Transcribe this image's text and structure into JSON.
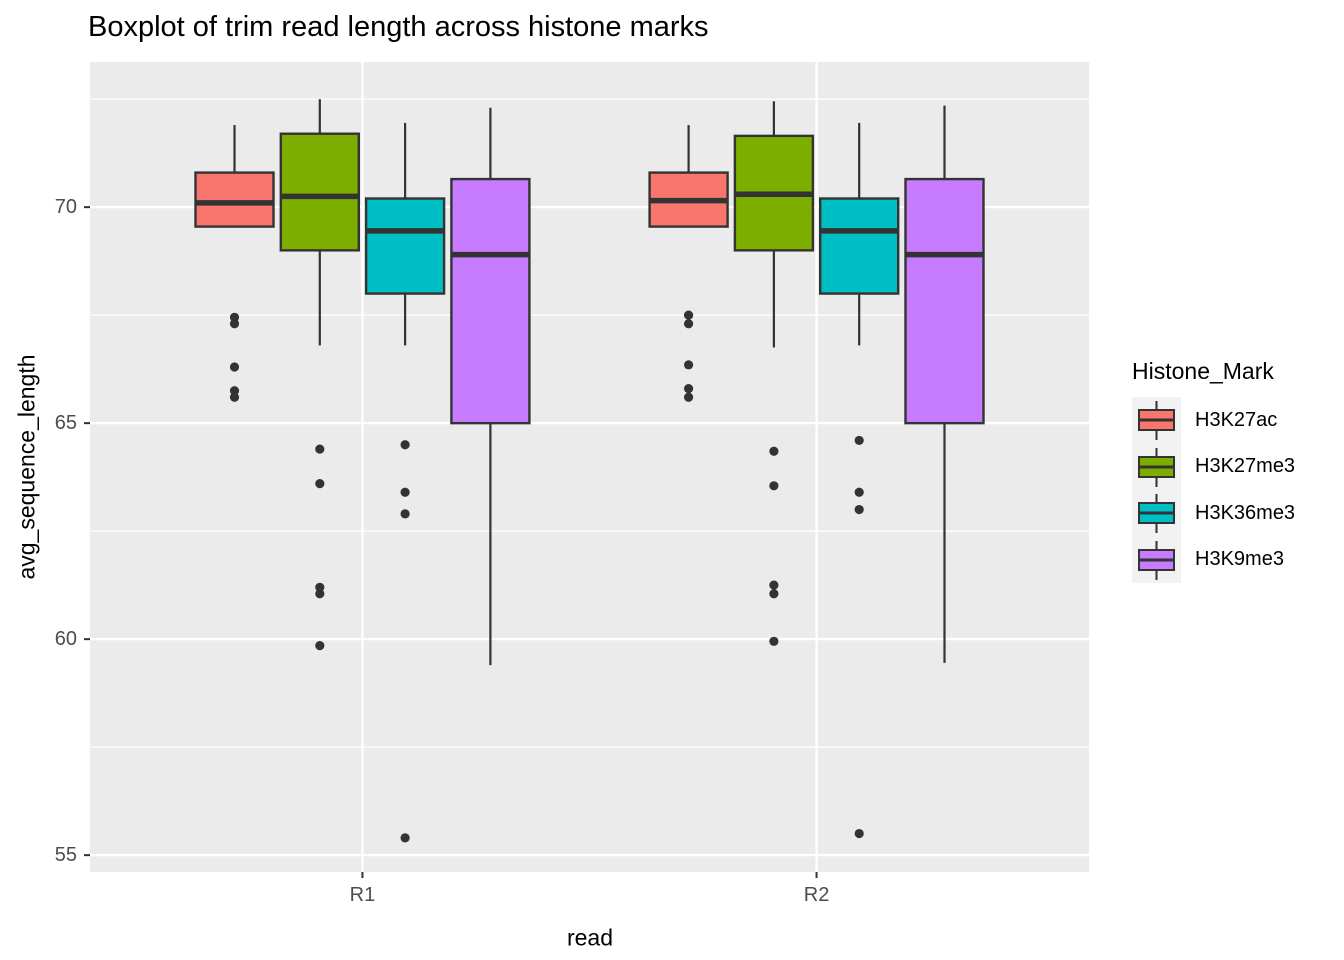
{
  "title": "Boxplot of trim read length across histone marks",
  "axes": {
    "x": {
      "label": "read"
    },
    "y": {
      "label": "avg_sequence_length"
    }
  },
  "legend": {
    "title": "Histone_Mark"
  },
  "theme": {
    "page_bg": "#FFFFFF",
    "panel_bg": "#EBEBEB",
    "grid_color": "#FFFFFF",
    "box_stroke": "#333333",
    "outlier_color": "#333333",
    "tick_label_color": "#4D4D4D",
    "text_color": "#000000",
    "legend_key_bg": "#F2F2F2"
  },
  "chart_data": {
    "type": "boxplot",
    "title": "Boxplot of trim read length across histone marks",
    "xlabel": "read",
    "ylabel": "avg_sequence_length",
    "categories": [
      "R1",
      "R2"
    ],
    "ylim": [
      54.61,
      73.36
    ],
    "yticks_major": [
      70,
      65,
      60,
      55
    ],
    "yticks_minor": [
      72.5,
      67.5,
      62.5,
      57.5
    ],
    "grid": true,
    "legend_position": "right",
    "legend_title": "Histone_Mark",
    "series": [
      {
        "name": "H3K27ac",
        "color": "#F8766D",
        "boxes": [
          {
            "category": "R1",
            "whisker_low": 69.55,
            "q1": 69.55,
            "median": 70.1,
            "q3": 70.8,
            "whisker_high": 71.9,
            "outliers": [
              67.45,
              67.3,
              66.3,
              65.75,
              65.6
            ]
          },
          {
            "category": "R2",
            "whisker_low": 69.55,
            "q1": 69.55,
            "median": 70.15,
            "q3": 70.8,
            "whisker_high": 71.9,
            "outliers": [
              67.5,
              67.3,
              66.35,
              65.8,
              65.6
            ]
          }
        ]
      },
      {
        "name": "H3K27me3",
        "color": "#7CAE00",
        "boxes": [
          {
            "category": "R1",
            "whisker_low": 66.8,
            "q1": 69.0,
            "median": 70.25,
            "q3": 71.7,
            "whisker_high": 72.5,
            "outliers": [
              64.4,
              63.6,
              61.2,
              61.05,
              59.85
            ]
          },
          {
            "category": "R2",
            "whisker_low": 66.75,
            "q1": 69.0,
            "median": 70.3,
            "q3": 71.65,
            "whisker_high": 72.45,
            "outliers": [
              64.35,
              63.55,
              61.25,
              61.05,
              59.95
            ]
          }
        ]
      },
      {
        "name": "H3K36me3",
        "color": "#00BFC4",
        "boxes": [
          {
            "category": "R1",
            "whisker_low": 66.8,
            "q1": 68.0,
            "median": 69.45,
            "q3": 70.2,
            "whisker_high": 71.95,
            "outliers": [
              64.5,
              63.4,
              62.9,
              55.4
            ]
          },
          {
            "category": "R2",
            "whisker_low": 66.8,
            "q1": 68.0,
            "median": 69.45,
            "q3": 70.2,
            "whisker_high": 71.95,
            "outliers": [
              64.6,
              63.4,
              63.0,
              55.5
            ]
          }
        ]
      },
      {
        "name": "H3K9me3",
        "color": "#C77CFF",
        "boxes": [
          {
            "category": "R1",
            "whisker_low": 59.4,
            "q1": 65.0,
            "median": 68.9,
            "q3": 70.65,
            "whisker_high": 72.3,
            "outliers": []
          },
          {
            "category": "R2",
            "whisker_low": 59.45,
            "q1": 65.0,
            "median": 68.9,
            "q3": 70.65,
            "whisker_high": 72.35,
            "outliers": []
          }
        ]
      }
    ]
  }
}
